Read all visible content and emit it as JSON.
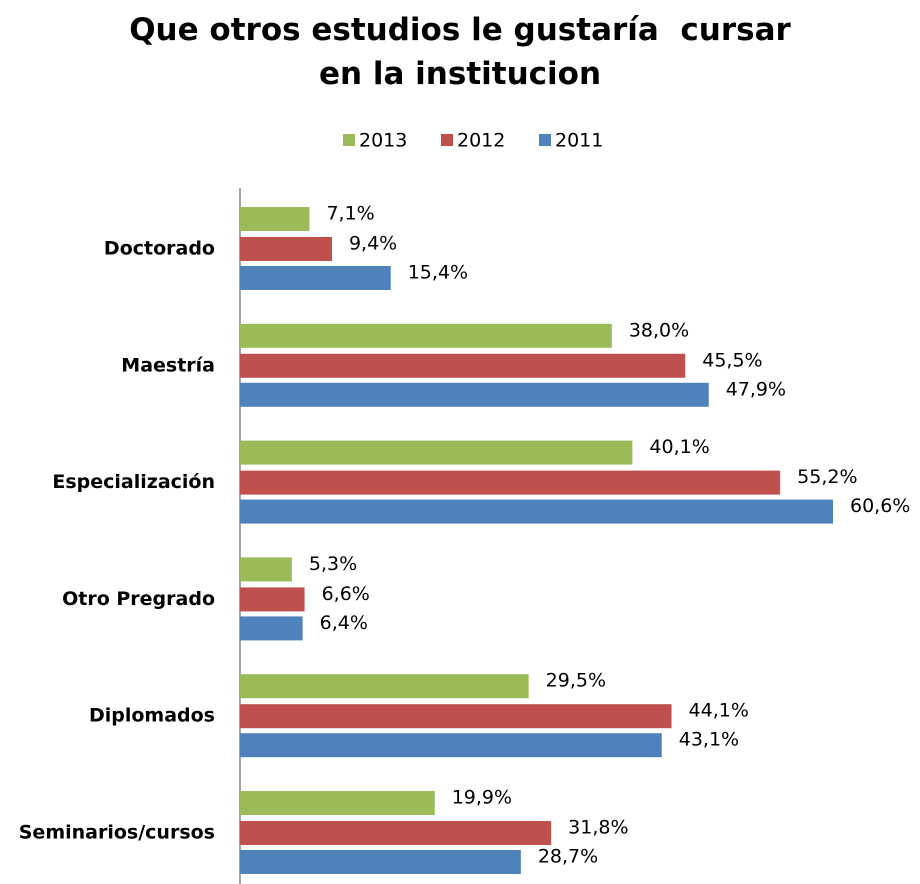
{
  "chart_data": {
    "type": "hbar",
    "title": "Que otros estudios le gustaría  cursar en la institucion",
    "categories": [
      "Doctorado",
      "Maestría",
      "Especialización",
      "Otro Pregrado",
      "Diplomados",
      "Seminarios/cursos"
    ],
    "series": [
      {
        "name": "2013",
        "color": "#9bbb59",
        "values": [
          7.1,
          38.0,
          40.1,
          5.3,
          29.5,
          19.9
        ],
        "value_labels": [
          "7,1%",
          "38,0%",
          "40,1%",
          "5,3%",
          "29,5%",
          "19,9%"
        ]
      },
      {
        "name": "2012",
        "color": "#c0504d",
        "values": [
          9.4,
          45.5,
          55.2,
          6.6,
          44.1,
          31.8
        ],
        "value_labels": [
          "9,4%",
          "45,5%",
          "55,2%",
          "6,6%",
          "44,1%",
          "31,8%"
        ]
      },
      {
        "name": "2011",
        "color": "#4f81bd",
        "values": [
          15.4,
          47.9,
          60.6,
          6.4,
          43.1,
          28.7
        ],
        "value_labels": [
          "15,4%",
          "47,9%",
          "60,6%",
          "6,4%",
          "43,1%",
          "28,7%"
        ]
      }
    ],
    "legend": "top"
  }
}
